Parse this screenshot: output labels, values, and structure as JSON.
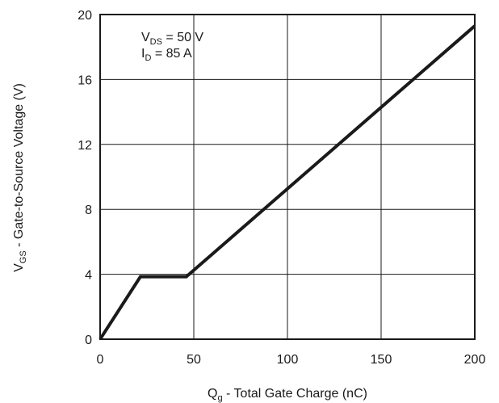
{
  "chart_data": {
    "type": "line",
    "xlabel_main": "Q",
    "xlabel_sub": "g",
    "xlabel_rest": " - Total Gate Charge (nC)",
    "ylabel_main": "V",
    "ylabel_sub": "GS",
    "ylabel_rest": " - Gate-to-Source Voltage (V)",
    "xlim": [
      0,
      200
    ],
    "ylim": [
      0,
      20
    ],
    "xticks": [
      0,
      50,
      100,
      150,
      200
    ],
    "yticks": [
      0,
      4,
      8,
      12,
      16,
      20
    ],
    "grid": true,
    "annotations": {
      "vds_main": "V",
      "vds_sub": "DS",
      "vds_rest": " = 50 V",
      "id_main": "I",
      "id_sub": "D",
      "id_rest": " = 85 A"
    },
    "series": [
      {
        "x": [
          0,
          21.5,
          46,
          200
        ],
        "y": [
          0,
          3.85,
          3.85,
          19.3
        ]
      }
    ]
  }
}
